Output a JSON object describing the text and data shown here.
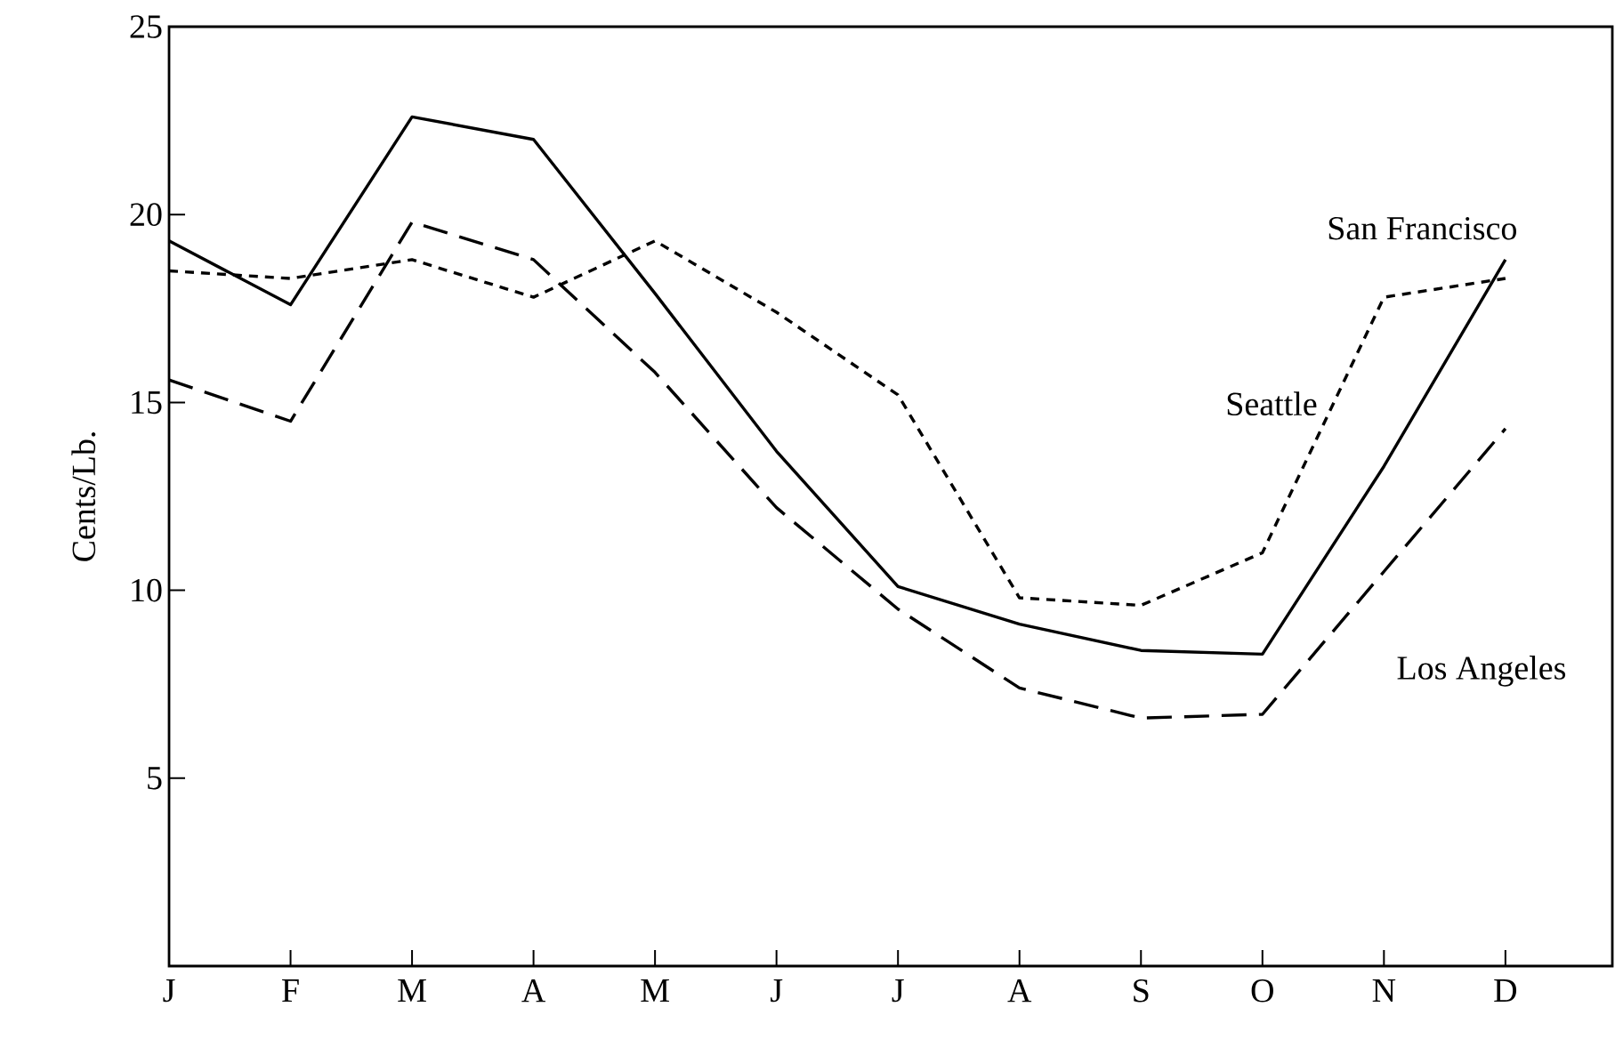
{
  "chart_data": {
    "type": "line",
    "ylabel": "Cents/Lb.",
    "categories": [
      "J",
      "F",
      "M",
      "A",
      "M",
      "J",
      "J",
      "A",
      "S",
      "O",
      "N",
      "D"
    ],
    "series": [
      {
        "name": "San Francisco",
        "color": "#000000",
        "line_style": "solid",
        "values": [
          19.3,
          17.6,
          22.6,
          22.0,
          17.9,
          13.7,
          10.1,
          9.1,
          8.4,
          8.3,
          13.3,
          18.8
        ]
      },
      {
        "name": "Seattle",
        "color": "#000000",
        "line_style": "dotted",
        "values": [
          18.5,
          18.3,
          18.8,
          17.8,
          19.3,
          17.4,
          15.2,
          9.8,
          9.6,
          11.0,
          17.8,
          18.3
        ]
      },
      {
        "name": "Los Angeles",
        "color": "#000000",
        "line_style": "dashed",
        "values": [
          15.6,
          14.5,
          19.8,
          18.8,
          15.8,
          12.2,
          9.5,
          7.4,
          6.6,
          6.7,
          10.5,
          14.3
        ]
      }
    ],
    "ylim": [
      0,
      25
    ],
    "yticks": [
      5,
      10,
      15,
      20,
      25
    ],
    "grid": false,
    "legend": false,
    "marker": "none"
  }
}
